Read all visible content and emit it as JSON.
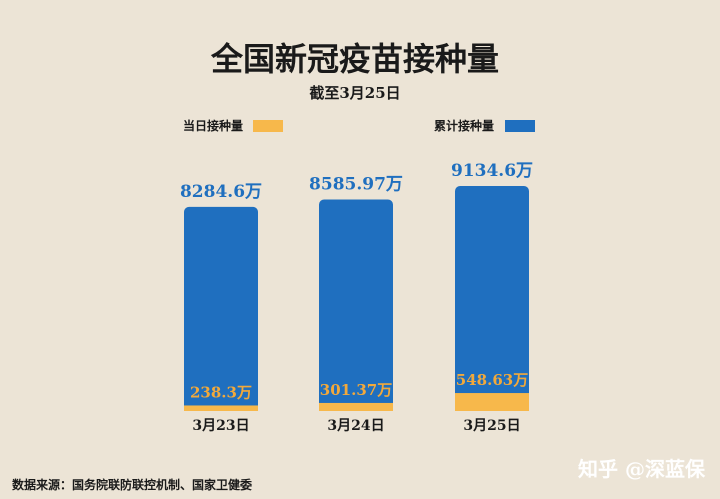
{
  "chart_data": {
    "type": "bar",
    "title": "全国新冠疫苗接种量",
    "subtitle": "截至3月25日",
    "categories": [
      "3月23日",
      "3月24日",
      "3月25日"
    ],
    "series": [
      {
        "name": "当日接种量",
        "values": [
          238.3,
          301.37,
          548.63
        ],
        "labels": [
          "238.3万",
          "301.37万",
          "548.63万"
        ],
        "color": "#f7b84b"
      },
      {
        "name": "累计接种量",
        "values": [
          8284.6,
          8585.97,
          9134.6
        ],
        "labels": [
          "8284.6万",
          "8585.97万",
          "9134.6万"
        ],
        "color": "#1f6fbf"
      }
    ],
    "unit": "万",
    "ylim": [
      0,
      9500
    ],
    "legend": "top"
  },
  "footer": {
    "source": "数据来源：国务院联防联控机制、国家卫健委",
    "brand": "知乎 @深蓝保"
  }
}
